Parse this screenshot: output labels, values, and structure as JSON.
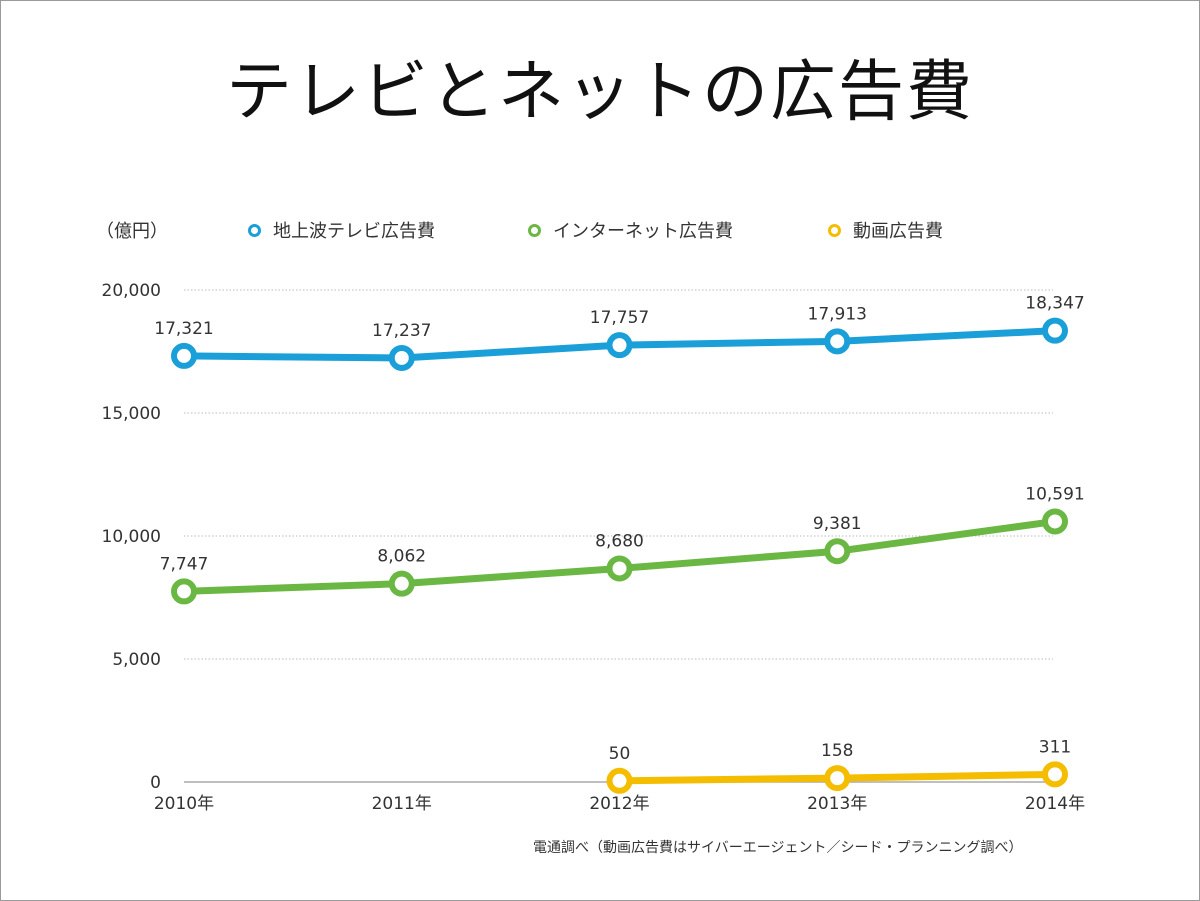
{
  "chart_data": {
    "type": "line",
    "title": "テレビとネットの広告費",
    "ylabel": "（億円）",
    "categories": [
      "2010年",
      "2011年",
      "2012年",
      "2013年",
      "2014年"
    ],
    "ylim": [
      0,
      20000
    ],
    "yticks": [
      "0",
      "5,000",
      "10,000",
      "15,000",
      "20,000"
    ],
    "ytick_values": [
      0,
      5000,
      10000,
      15000,
      20000
    ],
    "grid": true,
    "legend_position": "top",
    "series": [
      {
        "name": "地上波テレビ広告費",
        "color": "#1a9fd9",
        "values": [
          17321,
          17237,
          17757,
          17913,
          18347
        ],
        "labels": [
          "17,321",
          "17,237",
          "17,757",
          "17,913",
          "18,347"
        ]
      },
      {
        "name": "インターネット広告費",
        "color": "#6ab843",
        "values": [
          7747,
          8062,
          8680,
          9381,
          10591
        ],
        "labels": [
          "7,747",
          "8,062",
          "8,680",
          "9,381",
          "10,591"
        ]
      },
      {
        "name": "動画広告費",
        "color": "#f5bd00",
        "values": [
          null,
          null,
          50,
          158,
          311
        ],
        "labels": [
          null,
          null,
          "50",
          "158",
          "311"
        ]
      }
    ],
    "source": "電通調べ（動画広告費はサイバーエージェント／シード・プランニング調べ）"
  }
}
